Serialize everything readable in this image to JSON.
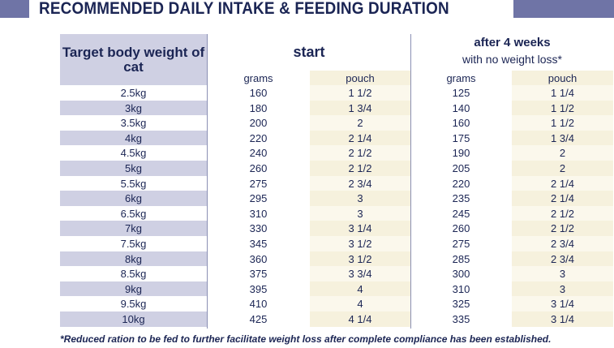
{
  "title": "RECOMMENDED DAILY INTAKE & FEEDING DURATION",
  "header": {
    "target_weight": "Target body weight of cat",
    "start": "start",
    "after_title": "after 4 weeks",
    "after_subtitle": "with no weight loss*",
    "grams": "grams",
    "pouch": "pouch"
  },
  "rows": [
    {
      "weight": "2.5kg",
      "start_grams": "160",
      "start_pouch": "1 1/2",
      "after_grams": "125",
      "after_pouch": "1 1/4"
    },
    {
      "weight": "3kg",
      "start_grams": "180",
      "start_pouch": "1 3/4",
      "after_grams": "140",
      "after_pouch": "1 1/2"
    },
    {
      "weight": "3.5kg",
      "start_grams": "200",
      "start_pouch": "2",
      "after_grams": "160",
      "after_pouch": "1 1/2"
    },
    {
      "weight": "4kg",
      "start_grams": "220",
      "start_pouch": "2 1/4",
      "after_grams": "175",
      "after_pouch": "1 3/4"
    },
    {
      "weight": "4.5kg",
      "start_grams": "240",
      "start_pouch": "2 1/2",
      "after_grams": "190",
      "after_pouch": "2"
    },
    {
      "weight": "5kg",
      "start_grams": "260",
      "start_pouch": "2 1/2",
      "after_grams": "205",
      "after_pouch": "2"
    },
    {
      "weight": "5.5kg",
      "start_grams": "275",
      "start_pouch": "2 3/4",
      "after_grams": "220",
      "after_pouch": "2 1/4"
    },
    {
      "weight": "6kg",
      "start_grams": "295",
      "start_pouch": "3",
      "after_grams": "235",
      "after_pouch": "2 1/4"
    },
    {
      "weight": "6.5kg",
      "start_grams": "310",
      "start_pouch": "3",
      "after_grams": "245",
      "after_pouch": "2 1/2"
    },
    {
      "weight": "7kg",
      "start_grams": "330",
      "start_pouch": "3 1/4",
      "after_grams": "260",
      "after_pouch": "2 1/2"
    },
    {
      "weight": "7.5kg",
      "start_grams": "345",
      "start_pouch": "3 1/2",
      "after_grams": "275",
      "after_pouch": "2 3/4"
    },
    {
      "weight": "8kg",
      "start_grams": "360",
      "start_pouch": "3 1/2",
      "after_grams": "285",
      "after_pouch": "2 3/4"
    },
    {
      "weight": "8.5kg",
      "start_grams": "375",
      "start_pouch": "3 3/4",
      "after_grams": "300",
      "after_pouch": "3"
    },
    {
      "weight": "9kg",
      "start_grams": "395",
      "start_pouch": "4",
      "after_grams": "310",
      "after_pouch": "3"
    },
    {
      "weight": "9.5kg",
      "start_grams": "410",
      "start_pouch": "4",
      "after_grams": "325",
      "after_pouch": "3 1/4"
    },
    {
      "weight": "10kg",
      "start_grams": "425",
      "start_pouch": "4 1/4",
      "after_grams": "335",
      "after_pouch": "3 1/4"
    }
  ],
  "footnote": "*Reduced ration to be fed to further facilitate weight loss after complete compliance has been established.",
  "colors": {
    "accent": "#6f74a6",
    "header_shade": "#cfd0e3",
    "pouch_shade": "#f6f1dd",
    "text": "#1b2554"
  }
}
